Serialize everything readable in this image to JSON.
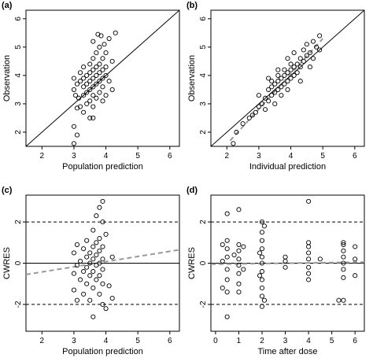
{
  "chart_data": [
    {
      "panel_label": "(a)",
      "type": "scatter",
      "xlabel": "Population prediction",
      "ylabel": "Observation",
      "xlim": [
        1.5,
        6.3
      ],
      "ylim": [
        1.5,
        6.3
      ],
      "xticks": [
        2,
        3,
        4,
        5,
        6
      ],
      "yticks": [
        2,
        3,
        4,
        5,
        6
      ],
      "reference_line": {
        "kind": "identity",
        "style": "solid"
      },
      "points": [
        [
          3.0,
          1.6
        ],
        [
          3.1,
          1.9
        ],
        [
          3.0,
          2.2
        ],
        [
          3.5,
          2.5
        ],
        [
          3.6,
          2.5
        ],
        [
          3.3,
          2.7
        ],
        [
          3.1,
          2.85
        ],
        [
          3.2,
          2.9
        ],
        [
          3.6,
          2.9
        ],
        [
          3.4,
          3.0
        ],
        [
          3.5,
          3.1
        ],
        [
          3.9,
          3.1
        ],
        [
          3.15,
          3.2
        ],
        [
          3.7,
          3.2
        ],
        [
          3.05,
          3.3
        ],
        [
          3.3,
          3.3
        ],
        [
          3.6,
          3.3
        ],
        [
          4.0,
          3.3
        ],
        [
          3.4,
          3.4
        ],
        [
          3.8,
          3.4
        ],
        [
          3.0,
          3.5
        ],
        [
          3.5,
          3.5
        ],
        [
          4.2,
          3.5
        ],
        [
          3.3,
          3.6
        ],
        [
          3.6,
          3.6
        ],
        [
          3.9,
          3.6
        ],
        [
          3.1,
          3.7
        ],
        [
          3.4,
          3.7
        ],
        [
          3.7,
          3.7
        ],
        [
          3.2,
          3.8
        ],
        [
          3.5,
          3.8
        ],
        [
          3.8,
          3.8
        ],
        [
          4.1,
          3.8
        ],
        [
          3.0,
          3.9
        ],
        [
          3.3,
          3.9
        ],
        [
          3.6,
          3.9
        ],
        [
          3.9,
          3.9
        ],
        [
          3.4,
          4.0
        ],
        [
          3.7,
          4.0
        ],
        [
          4.0,
          4.0
        ],
        [
          3.2,
          4.1
        ],
        [
          3.5,
          4.1
        ],
        [
          3.8,
          4.1
        ],
        [
          3.6,
          4.2
        ],
        [
          3.9,
          4.2
        ],
        [
          3.3,
          4.3
        ],
        [
          3.7,
          4.3
        ],
        [
          4.0,
          4.3
        ],
        [
          3.5,
          4.4
        ],
        [
          3.8,
          4.4
        ],
        [
          4.2,
          4.5
        ],
        [
          3.6,
          4.6
        ],
        [
          3.9,
          4.6
        ],
        [
          3.7,
          4.8
        ],
        [
          4.0,
          4.8
        ],
        [
          3.8,
          5.0
        ],
        [
          3.6,
          5.2
        ],
        [
          4.1,
          5.3
        ],
        [
          3.85,
          5.4
        ],
        [
          3.75,
          5.45
        ],
        [
          4.3,
          5.5
        ],
        [
          3.95,
          5.1
        ]
      ]
    },
    {
      "panel_label": "(b)",
      "type": "scatter",
      "xlabel": "Individual prediction",
      "ylabel": "Observation",
      "xlim": [
        1.5,
        6.3
      ],
      "ylim": [
        1.5,
        6.3
      ],
      "xticks": [
        2,
        3,
        4,
        5,
        6
      ],
      "yticks": [
        2,
        3,
        4,
        5,
        6
      ],
      "reference_line": {
        "kind": "identity",
        "style": "solid"
      },
      "trend_line": {
        "style": "dashed",
        "color": "#999999",
        "points": [
          [
            2.1,
            1.7
          ],
          [
            5.0,
            5.3
          ]
        ]
      },
      "points": [
        [
          2.2,
          1.6
        ],
        [
          2.3,
          2.0
        ],
        [
          2.5,
          2.3
        ],
        [
          2.7,
          2.5
        ],
        [
          2.9,
          2.7
        ],
        [
          3.0,
          2.9
        ],
        [
          3.1,
          3.0
        ],
        [
          3.3,
          3.1
        ],
        [
          3.2,
          3.2
        ],
        [
          3.4,
          3.3
        ],
        [
          3.0,
          3.3
        ],
        [
          3.5,
          3.4
        ],
        [
          3.3,
          3.5
        ],
        [
          3.6,
          3.5
        ],
        [
          3.4,
          3.6
        ],
        [
          3.7,
          3.6
        ],
        [
          3.5,
          3.7
        ],
        [
          3.8,
          3.7
        ],
        [
          3.6,
          3.8
        ],
        [
          3.9,
          3.8
        ],
        [
          3.4,
          3.8
        ],
        [
          3.7,
          3.9
        ],
        [
          4.0,
          3.9
        ],
        [
          3.8,
          4.0
        ],
        [
          4.1,
          4.0
        ],
        [
          3.6,
          4.0
        ],
        [
          3.9,
          4.1
        ],
        [
          4.2,
          4.1
        ],
        [
          4.0,
          4.2
        ],
        [
          3.8,
          4.2
        ],
        [
          4.1,
          4.3
        ],
        [
          4.3,
          4.3
        ],
        [
          4.2,
          4.4
        ],
        [
          4.0,
          4.4
        ],
        [
          4.4,
          4.5
        ],
        [
          4.3,
          4.6
        ],
        [
          4.5,
          4.7
        ],
        [
          4.6,
          4.8
        ],
        [
          4.4,
          4.9
        ],
        [
          4.8,
          5.0
        ],
        [
          4.9,
          4.9
        ],
        [
          4.7,
          5.2
        ],
        [
          4.9,
          5.4
        ],
        [
          3.9,
          3.5
        ],
        [
          3.7,
          3.3
        ],
        [
          4.3,
          3.8
        ],
        [
          3.5,
          3.0
        ],
        [
          3.2,
          2.8
        ],
        [
          2.8,
          2.6
        ],
        [
          4.6,
          4.3
        ],
        [
          3.9,
          4.6
        ],
        [
          4.1,
          4.8
        ],
        [
          3.6,
          4.2
        ],
        [
          4.5,
          5.1
        ],
        [
          3.3,
          3.9
        ],
        [
          4.7,
          4.6
        ]
      ]
    },
    {
      "panel_label": "(c)",
      "type": "scatter",
      "xlabel": "Population prediction",
      "ylabel": "CWRES",
      "xlim": [
        1.5,
        6.3
      ],
      "ylim": [
        -3.3,
        3.3
      ],
      "xticks": [
        2,
        3,
        4,
        5,
        6
      ],
      "yticks": [
        -2,
        0,
        2
      ],
      "hlines": [
        {
          "y": 0,
          "style": "solid"
        },
        {
          "y": 2,
          "style": "dashed"
        },
        {
          "y": -2,
          "style": "dashed"
        }
      ],
      "trend_line": {
        "style": "dashed",
        "color": "#999999",
        "points": [
          [
            1.5,
            -0.55
          ],
          [
            6.3,
            0.65
          ]
        ]
      },
      "points": [
        [
          3.6,
          -2.6
        ],
        [
          4.0,
          -2.2
        ],
        [
          3.9,
          -2.0
        ],
        [
          3.1,
          -1.8
        ],
        [
          3.5,
          -1.8
        ],
        [
          4.2,
          -1.7
        ],
        [
          3.3,
          -1.5
        ],
        [
          3.8,
          -1.5
        ],
        [
          3.0,
          -1.3
        ],
        [
          3.6,
          -1.2
        ],
        [
          4.1,
          -1.1
        ],
        [
          3.4,
          -1.0
        ],
        [
          3.9,
          -1.0
        ],
        [
          3.2,
          -0.8
        ],
        [
          3.7,
          -0.8
        ],
        [
          3.5,
          -0.6
        ],
        [
          3.8,
          -0.6
        ],
        [
          3.0,
          -0.5
        ],
        [
          3.3,
          -0.4
        ],
        [
          3.6,
          -0.4
        ],
        [
          3.9,
          -0.3
        ],
        [
          3.4,
          -0.2
        ],
        [
          3.7,
          -0.1
        ],
        [
          3.1,
          -0.1
        ],
        [
          3.5,
          0.0
        ],
        [
          3.8,
          0.0
        ],
        [
          3.2,
          0.1
        ],
        [
          3.6,
          0.2
        ],
        [
          3.9,
          0.2
        ],
        [
          3.4,
          0.3
        ],
        [
          3.7,
          0.4
        ],
        [
          4.2,
          0.3
        ],
        [
          3.0,
          0.5
        ],
        [
          3.5,
          0.5
        ],
        [
          3.8,
          0.6
        ],
        [
          3.3,
          0.7
        ],
        [
          3.6,
          0.8
        ],
        [
          3.9,
          0.8
        ],
        [
          3.1,
          0.9
        ],
        [
          3.7,
          1.0
        ],
        [
          3.4,
          1.1
        ],
        [
          3.8,
          1.2
        ],
        [
          4.0,
          1.4
        ],
        [
          3.6,
          1.6
        ],
        [
          3.9,
          2.0
        ],
        [
          3.7,
          2.3
        ],
        [
          3.8,
          2.7
        ],
        [
          3.9,
          3.0
        ]
      ]
    },
    {
      "panel_label": "(d)",
      "type": "scatter",
      "xlabel": "Time after dose",
      "ylabel": "CWRES",
      "xlim": [
        -0.2,
        6.4
      ],
      "ylim": [
        -3.3,
        3.3
      ],
      "xticks": [
        0,
        1,
        2,
        3,
        4,
        5,
        6
      ],
      "yticks": [
        -2,
        0,
        2
      ],
      "hlines": [
        {
          "y": 0,
          "style": "solid"
        },
        {
          "y": 2,
          "style": "dashed"
        },
        {
          "y": -2,
          "style": "dashed"
        }
      ],
      "trend_line": {
        "style": "dashed",
        "color": "#999999",
        "points": [
          [
            -0.2,
            -0.05
          ],
          [
            6.4,
            0.05
          ]
        ]
      },
      "points": [
        [
          0.5,
          -2.6
        ],
        [
          0.5,
          -1.4
        ],
        [
          0.5,
          -0.8
        ],
        [
          0.5,
          -0.3
        ],
        [
          0.5,
          0.3
        ],
        [
          0.5,
          0.7
        ],
        [
          0.5,
          1.1
        ],
        [
          0.5,
          2.4
        ],
        [
          0.3,
          -1.2
        ],
        [
          0.3,
          0.1
        ],
        [
          0.3,
          0.9
        ],
        [
          1.0,
          -1.4
        ],
        [
          1.0,
          -1.0
        ],
        [
          1.0,
          -0.5
        ],
        [
          1.0,
          -0.1
        ],
        [
          1.0,
          0.2
        ],
        [
          1.0,
          0.6
        ],
        [
          1.0,
          0.9
        ],
        [
          1.0,
          2.6
        ],
        [
          1.2,
          0.8
        ],
        [
          1.2,
          -0.3
        ],
        [
          0.8,
          0.4
        ],
        [
          2.0,
          -2.1
        ],
        [
          2.0,
          -1.6
        ],
        [
          2.0,
          -1.2
        ],
        [
          2.0,
          -0.8
        ],
        [
          2.0,
          -0.4
        ],
        [
          2.0,
          0.0
        ],
        [
          2.0,
          0.3
        ],
        [
          2.0,
          0.7
        ],
        [
          2.0,
          1.1
        ],
        [
          2.0,
          1.5
        ],
        [
          2.0,
          2.0
        ],
        [
          2.1,
          -1.8
        ],
        [
          2.1,
          1.8
        ],
        [
          1.9,
          -0.6
        ],
        [
          1.9,
          0.5
        ],
        [
          3.0,
          0.3
        ],
        [
          3.0,
          0.1
        ],
        [
          3.0,
          -0.2
        ],
        [
          4.0,
          -0.8
        ],
        [
          4.0,
          -0.5
        ],
        [
          4.0,
          -0.2
        ],
        [
          4.0,
          0.2
        ],
        [
          4.0,
          0.5
        ],
        [
          4.0,
          0.8
        ],
        [
          4.0,
          1.0
        ],
        [
          4.0,
          3.0
        ],
        [
          5.5,
          -1.8
        ],
        [
          5.5,
          -0.7
        ],
        [
          5.5,
          -0.3
        ],
        [
          5.5,
          0.0
        ],
        [
          5.5,
          0.3
        ],
        [
          5.5,
          0.6
        ],
        [
          5.5,
          0.9
        ],
        [
          5.5,
          1.0
        ],
        [
          6.0,
          -0.6
        ],
        [
          6.0,
          0.2
        ],
        [
          6.0,
          0.8
        ],
        [
          5.3,
          -1.8
        ],
        [
          4.5,
          0.2
        ]
      ]
    }
  ]
}
